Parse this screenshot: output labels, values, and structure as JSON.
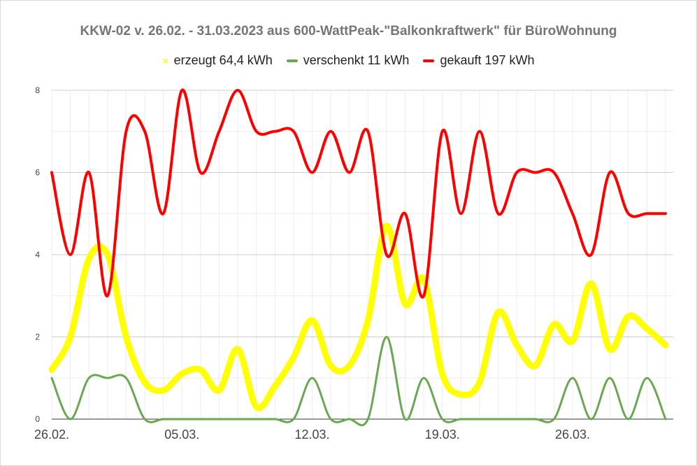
{
  "chart_data": {
    "type": "line",
    "title": "KKW-02 v. 26.02. - 31.03.2023 aus 600-WattPeak-\"Balkonkraftwerk\" für BüroWohnung",
    "xlabel": "",
    "ylabel": "",
    "ylim": [
      0,
      8
    ],
    "yticks": [
      "0",
      "2",
      "4",
      "6",
      "8"
    ],
    "x_ticks": [
      {
        "label": "26.02.",
        "index": 0
      },
      {
        "label": "05.03.",
        "index": 7
      },
      {
        "label": "12.03.",
        "index": 14
      },
      {
        "label": "19.03.",
        "index": 21
      },
      {
        "label": "26.03.",
        "index": 28
      }
    ],
    "grid": true,
    "legend_position": "top",
    "categories": [
      "26.02.",
      "27.02.",
      "28.02.",
      "01.03.",
      "02.03.",
      "03.03.",
      "04.03.",
      "05.03.",
      "06.03.",
      "07.03.",
      "08.03.",
      "09.03.",
      "10.03.",
      "11.03.",
      "12.03.",
      "13.03.",
      "14.03.",
      "15.03.",
      "16.03.",
      "17.03.",
      "18.03.",
      "19.03.",
      "20.03.",
      "21.03.",
      "22.03.",
      "23.03.",
      "24.03.",
      "25.03.",
      "26.03.",
      "27.03.",
      "28.03.",
      "29.03.",
      "30.03.",
      "31.03."
    ],
    "series": [
      {
        "name": "erzeugt 64,4 kWh",
        "color": "#ffff00",
        "marker": "x",
        "values": [
          1.2,
          2.0,
          3.9,
          4.0,
          2.0,
          0.9,
          0.7,
          1.1,
          1.2,
          0.7,
          1.7,
          0.3,
          0.8,
          1.5,
          2.4,
          1.3,
          1.3,
          2.4,
          4.7,
          2.8,
          3.4,
          1.1,
          0.6,
          0.9,
          2.6,
          1.8,
          1.3,
          2.3,
          1.9,
          3.3,
          1.7,
          2.5,
          2.2,
          1.8
        ]
      },
      {
        "name": "verschenkt 11 kWh",
        "color": "#6aa84f",
        "values": [
          1,
          0,
          1,
          1,
          1,
          0,
          0,
          0,
          0,
          0,
          0,
          0,
          0,
          0,
          1,
          0,
          0,
          0,
          2,
          0,
          1,
          0,
          0,
          0,
          0,
          0,
          0,
          0,
          1,
          0,
          1,
          0,
          1,
          0
        ]
      },
      {
        "name": "gekauft 197 kWh",
        "color": "#ff0000",
        "values": [
          6,
          4,
          6,
          3,
          7,
          7,
          5,
          8,
          6,
          7,
          8,
          7,
          7,
          7,
          6,
          7,
          6,
          7,
          4,
          5,
          3,
          7,
          5,
          7,
          5,
          6,
          6,
          6,
          5,
          4,
          6,
          5,
          5,
          5
        ]
      }
    ]
  }
}
